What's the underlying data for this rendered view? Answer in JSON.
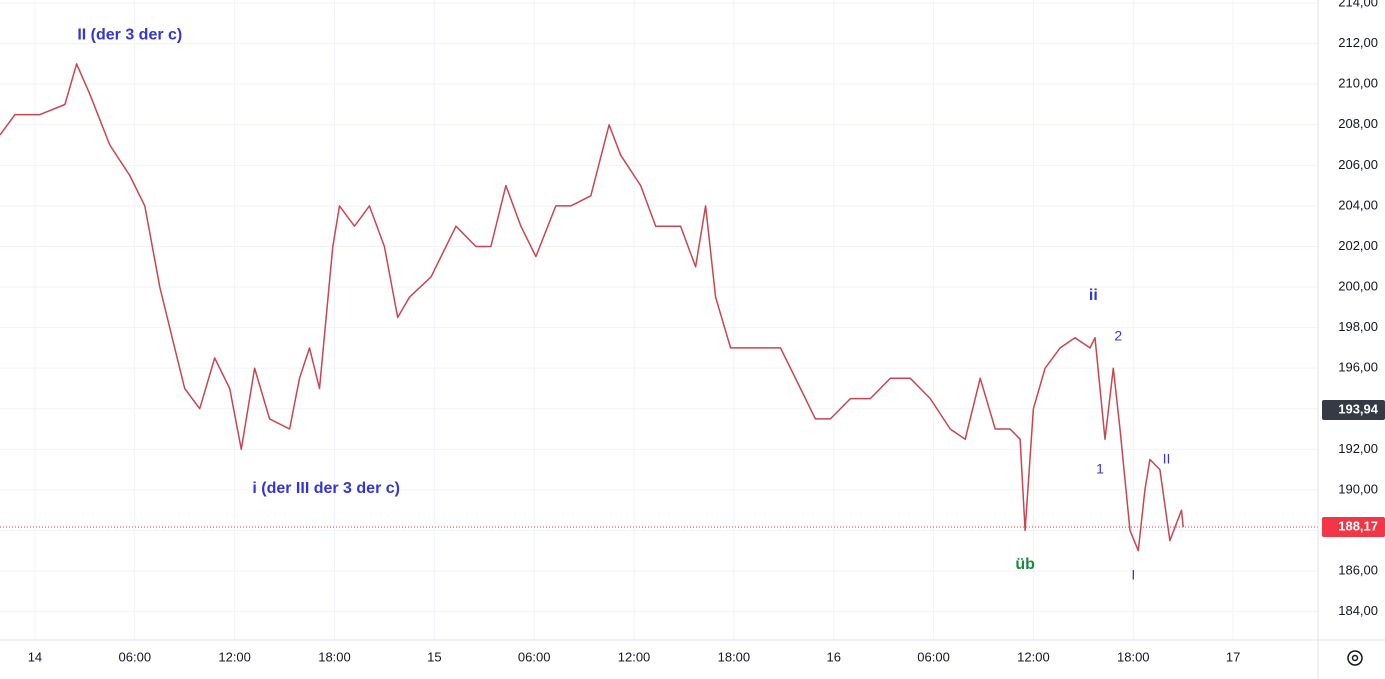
{
  "chart_data": {
    "type": "line",
    "color": "#c74651",
    "grid": true,
    "xlim": [
      -2.1,
      77.1
    ],
    "ylim": [
      182.6,
      214.15
    ],
    "xticks": [
      {
        "value": 0,
        "label": "14"
      },
      {
        "value": 6,
        "label": "06:00"
      },
      {
        "value": 12,
        "label": "12:00"
      },
      {
        "value": 18,
        "label": "18:00"
      },
      {
        "value": 24,
        "label": "15"
      },
      {
        "value": 30,
        "label": "06:00"
      },
      {
        "value": 36,
        "label": "12:00"
      },
      {
        "value": 42,
        "label": "18:00"
      },
      {
        "value": 48,
        "label": "16"
      },
      {
        "value": 54,
        "label": "06:00"
      },
      {
        "value": 60,
        "label": "12:00"
      },
      {
        "value": 66,
        "label": "18:00"
      },
      {
        "value": 72,
        "label": "17"
      }
    ],
    "yticks": [
      {
        "value": 184,
        "label": "184,00"
      },
      {
        "value": 186,
        "label": "186,00"
      },
      {
        "value": 188,
        "label": "188,00"
      },
      {
        "value": 190,
        "label": "190,00"
      },
      {
        "value": 192,
        "label": "192,00"
      },
      {
        "value": 194,
        "label": "194,00"
      },
      {
        "value": 196,
        "label": "196,00"
      },
      {
        "value": 198,
        "label": "198,00"
      },
      {
        "value": 200,
        "label": "200,00"
      },
      {
        "value": 202,
        "label": "202,00"
      },
      {
        "value": 204,
        "label": "204,00"
      },
      {
        "value": 206,
        "label": "206,00"
      },
      {
        "value": 208,
        "label": "208,00"
      },
      {
        "value": 210,
        "label": "210,00"
      },
      {
        "value": 212,
        "label": "212,00"
      },
      {
        "value": 214,
        "label": "214,00"
      }
    ],
    "x": [
      -2.1,
      -1.2,
      0.3,
      1.8,
      2.5,
      3.3,
      4.5,
      5.7,
      6.6,
      7.5,
      8.4,
      9.0,
      9.9,
      10.8,
      11.7,
      12.4,
      13.2,
      14.1,
      15.3,
      15.9,
      16.5,
      17.1,
      17.9,
      18.3,
      19.2,
      20.1,
      21.0,
      21.8,
      22.5,
      23.8,
      25.3,
      26.5,
      27.4,
      28.3,
      29.2,
      30.1,
      31.3,
      32.2,
      33.4,
      34.5,
      35.2,
      36.4,
      37.3,
      38.8,
      39.7,
      40.3,
      40.9,
      41.8,
      42.7,
      43.9,
      44.8,
      46.0,
      46.9,
      47.8,
      49.0,
      50.2,
      51.4,
      52.6,
      53.8,
      55.0,
      55.9,
      56.8,
      57.7,
      58.6,
      59.2,
      59.5,
      60.0,
      60.7,
      61.6,
      62.5,
      63.4,
      63.7,
      64.3,
      64.8,
      65.2,
      65.8,
      66.3,
      66.7,
      67.0,
      67.6,
      68.2,
      68.9,
      69.0
    ],
    "values": [
      207.5,
      208.5,
      208.5,
      209,
      211,
      209.5,
      207,
      205.5,
      204,
      200,
      197,
      195,
      194,
      196.5,
      195,
      192,
      196,
      193.5,
      193,
      195.5,
      197,
      195,
      202,
      204,
      203,
      204,
      202,
      198.5,
      199.5,
      200.5,
      203,
      202,
      202,
      205,
      203,
      201.5,
      204,
      204,
      204.5,
      208,
      206.5,
      205,
      203,
      203,
      201,
      204,
      199.5,
      197,
      197,
      197,
      197,
      195,
      193.5,
      193.5,
      194.5,
      194.5,
      195.5,
      195.5,
      194.5,
      193,
      192.5,
      195.5,
      193,
      193,
      192.5,
      188,
      194,
      196,
      197,
      197.5,
      197,
      197.5,
      192.5,
      196,
      193,
      188,
      187,
      190,
      191.5,
      191,
      187.5,
      189,
      188.17
    ],
    "annotations": [
      {
        "text": "II (der 3 der c)",
        "x": 5.7,
        "y": 212.4,
        "color": "#3535d4",
        "bold": true
      },
      {
        "text": "i (der III der 3 der c)",
        "x": 17.5,
        "y": 190.06,
        "color": "#3535d4",
        "bold": true
      },
      {
        "text": "ii",
        "x": 63.6,
        "y": 199.57,
        "color": "#3535d4",
        "bold": true
      },
      {
        "text": "2",
        "x": 65.1,
        "y": 197.55,
        "color": "#3535d4",
        "bold": false
      },
      {
        "text": "1",
        "x": 64.0,
        "y": 191.0,
        "color": "#3535d4",
        "bold": false
      },
      {
        "text": "II",
        "x": 68.0,
        "y": 191.49,
        "color": "#3535d4",
        "bold": false
      },
      {
        "text": "üb",
        "x": 59.5,
        "y": 186.3,
        "color": "#1b8a3a",
        "bold": true
      },
      {
        "text": "I",
        "x": 66.0,
        "y": 185.77,
        "color": "#3535d4",
        "bold": false
      }
    ],
    "price_tags": [
      {
        "value": 193.94,
        "label": "193,94",
        "color": "#363a45",
        "line": false
      },
      {
        "value": 188.17,
        "label": "188,17",
        "color": "#f23645",
        "line": true
      }
    ]
  }
}
